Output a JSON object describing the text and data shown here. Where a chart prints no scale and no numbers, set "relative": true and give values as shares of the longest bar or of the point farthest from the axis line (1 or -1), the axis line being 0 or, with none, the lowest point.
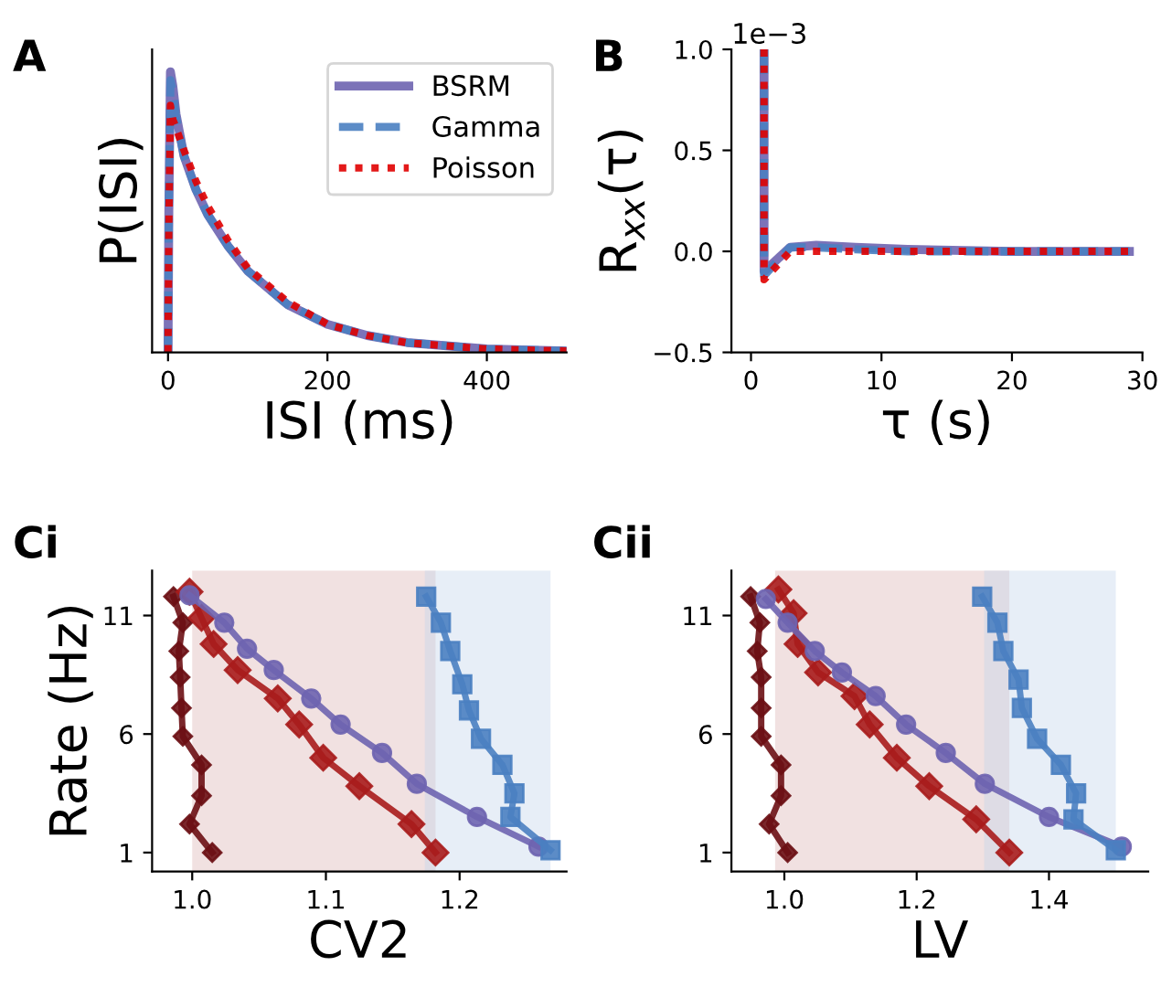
{
  "chart_data": [
    {
      "type": "line",
      "title": "A",
      "xlabel": "ISI (ms)",
      "ylabel": "P(ISI)",
      "relative": true,
      "xlim": [
        -20,
        500
      ],
      "xticks": [
        0,
        200,
        400
      ],
      "legend": "top right",
      "series": [
        {
          "name": "BSRM",
          "color": "#6e64b0",
          "line_style": "solid",
          "x": [
            0,
            1,
            3,
            6,
            10,
            20,
            35,
            50,
            75,
            100,
            150,
            200,
            250,
            300,
            400,
            500
          ],
          "values": [
            0,
            0.5,
            1.0,
            0.95,
            0.85,
            0.7,
            0.58,
            0.49,
            0.38,
            0.29,
            0.17,
            0.1,
            0.06,
            0.035,
            0.012,
            0.005
          ]
        },
        {
          "name": "Gamma",
          "color": "#4a7fc1",
          "line_style": "dashed",
          "x": [
            0,
            1,
            3,
            6,
            10,
            20,
            35,
            50,
            75,
            100,
            150,
            200,
            250,
            300,
            400,
            500
          ],
          "values": [
            0,
            0.5,
            0.97,
            0.93,
            0.84,
            0.7,
            0.58,
            0.49,
            0.38,
            0.29,
            0.17,
            0.1,
            0.06,
            0.035,
            0.012,
            0.005
          ]
        },
        {
          "name": "Poisson",
          "color": "#e00000",
          "line_style": "dotted",
          "x": [
            0,
            1,
            3,
            6,
            10,
            20,
            35,
            50,
            75,
            100,
            150,
            200,
            250,
            300,
            400,
            500
          ],
          "values": [
            0,
            0.45,
            0.88,
            0.83,
            0.8,
            0.72,
            0.61,
            0.52,
            0.4,
            0.3,
            0.18,
            0.1,
            0.06,
            0.034,
            0.012,
            0.005
          ]
        }
      ]
    },
    {
      "type": "line",
      "title": "B",
      "xlabel": "τ (s)",
      "ylabel": "R$_{xx}$(τ)",
      "annotations": [
        "1e−3"
      ],
      "xlim": [
        -1.5,
        30
      ],
      "xticks": [
        0,
        10,
        20,
        30
      ],
      "ylim": [
        -0.5,
        1.0
      ],
      "yticks": [
        {
          "value": -0.5,
          "label": "−0.5"
        },
        {
          "value": 0,
          "label": "0.0"
        },
        0.5,
        {
          "value": 1,
          "label": "1.0"
        }
      ],
      "series": [
        {
          "color": "#6e64b0",
          "line_style": "solid",
          "x": [
            1,
            1,
            2,
            3,
            5,
            8,
            12,
            20,
            29
          ],
          "values": [
            1.0,
            -0.1,
            -0.04,
            0.02,
            0.03,
            0.02,
            0.01,
            0.0,
            0.0
          ]
        },
        {
          "color": "#4a7fc1",
          "line_style": "dashed",
          "x": [
            1,
            1,
            2,
            3,
            5,
            8,
            12,
            20,
            29
          ],
          "values": [
            1.0,
            -0.12,
            -0.05,
            0.02,
            0.02,
            0.01,
            0.0,
            0.0,
            0.0
          ]
        },
        {
          "color": "#e00000",
          "line_style": "dotted",
          "x": [
            1,
            1,
            2,
            3,
            5,
            8,
            12,
            20,
            29
          ],
          "values": [
            1.0,
            -0.14,
            -0.07,
            0.0,
            0.0,
            0.0,
            0.0,
            0.0,
            0.0
          ]
        }
      ]
    },
    {
      "type": "line",
      "title": "Ci",
      "xlabel": "CV2",
      "ylabel": "Rate (Hz)",
      "xlim": [
        0.97,
        1.28
      ],
      "xticks": [
        {
          "value": 1,
          "label": "1.0"
        },
        1.1,
        1.2
      ],
      "ylim": [
        0.2,
        12.9
      ],
      "yticks": [
        1,
        6,
        11
      ],
      "bands": [
        {
          "axis": "x",
          "from": 1.0,
          "to": 1.182,
          "color": "#dcb4b4"
        },
        {
          "axis": "x",
          "from": 1.174,
          "to": 1.268,
          "color": "#c4d4ec"
        }
      ],
      "series": [
        {
          "color": "#6b0f14",
          "marker": "diamond",
          "x": [
            1.015,
            0.998,
            1.007,
            1.007,
            0.993,
            0.992,
            0.991,
            0.99,
            0.993,
            0.986
          ],
          "values": [
            1.0,
            2.2,
            3.4,
            4.7,
            5.9,
            7.1,
            8.4,
            9.5,
            10.7,
            11.8
          ]
        },
        {
          "color": "#a81c1c",
          "marker": "diamond",
          "x": [
            1.182,
            1.164,
            1.125,
            1.098,
            1.08,
            1.064,
            1.034,
            1.016,
            1.007,
            0.998
          ],
          "values": [
            1.0,
            2.2,
            3.8,
            5.0,
            6.4,
            7.5,
            8.7,
            9.8,
            10.9,
            12.0
          ]
        },
        {
          "color": "#6e64b0",
          "marker": "circle",
          "x": [
            1.259,
            1.213,
            1.168,
            1.142,
            1.111,
            1.089,
            1.061,
            1.041,
            1.024,
            0.998
          ],
          "values": [
            1.25,
            2.5,
            3.9,
            5.2,
            6.4,
            7.5,
            8.7,
            9.6,
            10.7,
            11.85
          ]
        },
        {
          "color": "#4a7fc1",
          "marker": "square",
          "x": [
            1.268,
            1.238,
            1.241,
            1.232,
            1.216,
            1.207,
            1.202,
            1.193,
            1.186,
            1.175
          ],
          "values": [
            1.1,
            2.5,
            3.5,
            4.7,
            5.8,
            7.0,
            8.1,
            9.5,
            10.7,
            11.8
          ]
        }
      ]
    },
    {
      "type": "line",
      "title": "Cii",
      "xlabel": "LV",
      "xlim": [
        0.92,
        1.55
      ],
      "xticks": [
        {
          "value": 1,
          "label": "1.0"
        },
        1.2,
        1.4
      ],
      "ylim": [
        0.2,
        12.9
      ],
      "yticks": [
        1,
        6,
        11
      ],
      "bands": [
        {
          "axis": "x",
          "from": 0.986,
          "to": 1.34,
          "color": "#dcb4b4"
        },
        {
          "axis": "x",
          "from": 1.302,
          "to": 1.501,
          "color": "#c4d4ec"
        }
      ],
      "series": [
        {
          "color": "#6b0f14",
          "marker": "diamond",
          "x": [
            1.005,
            0.977,
            0.995,
            0.995,
            0.965,
            0.965,
            0.965,
            0.959,
            0.963,
            0.949
          ],
          "values": [
            1.0,
            2.2,
            3.4,
            4.7,
            5.9,
            7.1,
            8.4,
            9.5,
            10.7,
            11.8
          ]
        },
        {
          "color": "#a81c1c",
          "marker": "diamond",
          "x": [
            1.34,
            1.29,
            1.219,
            1.17,
            1.129,
            1.106,
            1.051,
            1.02,
            1.014,
            0.991
          ],
          "values": [
            1.0,
            2.4,
            3.8,
            5.0,
            6.4,
            7.6,
            8.6,
            9.8,
            11.1,
            12.1
          ]
        },
        {
          "color": "#6e64b0",
          "marker": "circle",
          "x": [
            1.51,
            1.4,
            1.303,
            1.244,
            1.184,
            1.138,
            1.087,
            1.046,
            1.005,
            0.972
          ],
          "values": [
            1.25,
            2.5,
            3.9,
            5.2,
            6.4,
            7.6,
            8.6,
            9.5,
            10.7,
            11.7
          ]
        },
        {
          "color": "#4a7fc1",
          "marker": "square",
          "x": [
            1.501,
            1.437,
            1.441,
            1.418,
            1.382,
            1.359,
            1.354,
            1.331,
            1.322,
            1.299
          ],
          "values": [
            1.1,
            2.4,
            3.5,
            4.7,
            5.8,
            7.1,
            8.3,
            9.5,
            10.7,
            11.8
          ]
        }
      ]
    }
  ]
}
